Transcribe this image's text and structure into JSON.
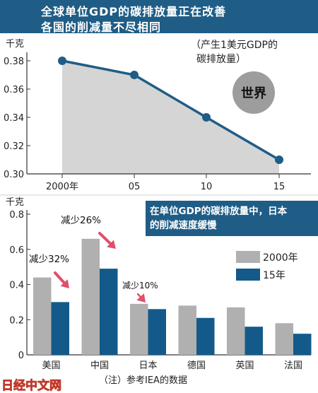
{
  "header": {
    "title_line1": "全球单位GDP的碳排放量正在改善",
    "title_line2": "各国的削减量不尽相同"
  },
  "colors": {
    "header_bg": "#1f5d86",
    "line_color": "#1f5d86",
    "area_fill": "#d5d5d5",
    "bar_2000": "#b0b0b0",
    "bar_2015": "#135a8a",
    "arrow": "#e0506a",
    "callout_bg": "#1f5d86"
  },
  "chart_data": [
    {
      "type": "line",
      "ylabel": "千克",
      "note": "（产生1美元GDP的\n碳排放量）",
      "badge": "世界",
      "x": [
        "2000年",
        "05",
        "10",
        "15"
      ],
      "values": [
        0.38,
        0.37,
        0.34,
        0.31
      ],
      "ylim": [
        0.3,
        0.38
      ],
      "yticks": [
        "0.30",
        "0.32",
        "0.34",
        "0.36",
        "0.38"
      ],
      "grid": false
    },
    {
      "type": "bar",
      "ylabel": "千克",
      "categories": [
        "美国",
        "中国",
        "日本",
        "德国",
        "英国",
        "法国"
      ],
      "series": [
        {
          "name": "2000年",
          "values": [
            0.44,
            0.66,
            0.29,
            0.28,
            0.27,
            0.18
          ]
        },
        {
          "name": "15年",
          "values": [
            0.3,
            0.49,
            0.26,
            0.21,
            0.16,
            0.12
          ]
        }
      ],
      "ylim": [
        0,
        0.8
      ],
      "yticks": [
        "0",
        "0.2",
        "0.4",
        "0.6",
        "0.8"
      ],
      "annotations": [
        "减少32%",
        "减少26%",
        "减少10%"
      ],
      "callout": "在单位GDP的碳排放量中，日本\n的削减速度缓慢",
      "note": "（注）参考IEA的数据",
      "legend_position": "right"
    }
  ],
  "watermark": "日经中文网"
}
